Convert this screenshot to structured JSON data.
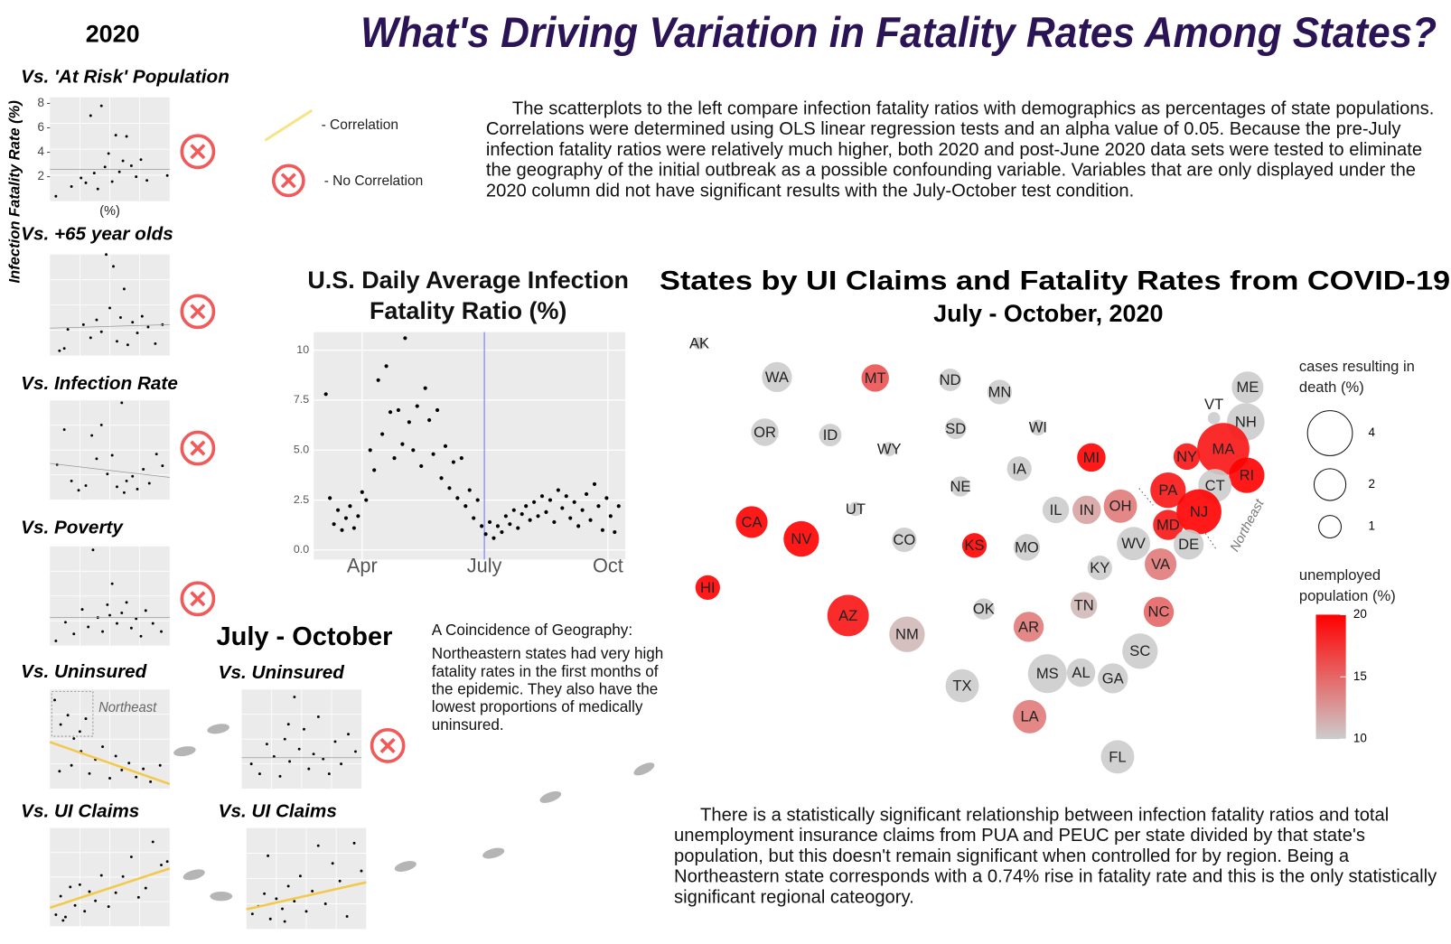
{
  "header": {
    "title": "What's Driving Variation in Fatality Rates Among States?",
    "col_2020": "2020",
    "col_july_oct": "July - October"
  },
  "y_axis_label": "Infection Fatality Rate (%)",
  "legend": {
    "correlation": "- Correlation",
    "no_correlation": "- No Correlation"
  },
  "intro_text": "The scatterplots to the left compare infection fatality ratios with demographics as percentages of state populations. Correlations were determined using OLS linear regression tests and an alpha value of 0.05. Because the pre-July infection fatality ratios were relatively much higher, both 2020 and post-June 2020 data sets were tested to eliminate the geography of the initial outbreak as a possible confounding variable. Variables that are only displayed under the 2020 column did not have significant results with the July-October test condition.",
  "note": {
    "title": "A Coincidence of Geography:",
    "body": "Northeastern states had very high fatality rates in the first months of the epidemic. They also have the lowest proportions of medically uninsured."
  },
  "conclusion": "There is a statistically significant relationship between infection fatality ratios and total unemployment insurance claims from PUA and PEUC per state divided by that state's population, but this doesn't remain significant when controlled for by region. Being a Northeastern state corresponds with a 0.74% rise in fatality rate and this is the only statistically significant regional cateogory.",
  "chart_data": [
    {
      "type": "scatter",
      "title": "Vs. 'At Risk' Population",
      "xlabel": "(%)",
      "xlim": [
        0,
        10
      ],
      "ylim": [
        0,
        8.5
      ],
      "yticks": [
        2,
        4,
        6,
        8
      ],
      "correlation": false,
      "fit_line": [
        2.6,
        2.6
      ],
      "x": [
        0.5,
        1.8,
        2.6,
        3.0,
        3.4,
        3.7,
        4.0,
        4.3,
        4.6,
        4.9,
        5.2,
        5.5,
        5.8,
        6.1,
        6.4,
        6.8,
        7.2,
        7.6,
        8.1,
        9.8
      ],
      "y": [
        0.4,
        1.2,
        1.9,
        1.5,
        7.0,
        2.3,
        1.0,
        7.8,
        2.8,
        3.9,
        1.6,
        5.4,
        2.4,
        3.3,
        5.3,
        2.9,
        2.0,
        3.4,
        1.7,
        2.1
      ]
    },
    {
      "type": "scatter",
      "title": "Vs. +65 year olds",
      "xlim": [
        0,
        10
      ],
      "ylim": [
        0,
        8.5
      ],
      "correlation": false,
      "fit_line": [
        2.3,
        2.6
      ],
      "x": [
        0.8,
        1.5,
        2.8,
        3.4,
        3.9,
        4.3,
        4.7,
        5.0,
        5.3,
        5.6,
        5.9,
        6.2,
        6.5,
        6.9,
        7.3,
        7.7,
        8.2,
        8.8,
        9.4,
        1.2
      ],
      "y": [
        0.4,
        2.2,
        2.6,
        1.5,
        3.0,
        2.0,
        8.5,
        4.0,
        7.5,
        1.2,
        3.2,
        5.6,
        0.9,
        2.8,
        1.9,
        3.3,
        2.4,
        1.0,
        2.6,
        0.6
      ]
    },
    {
      "type": "scatter",
      "title": "Vs. Infection Rate",
      "xlim": [
        0,
        10
      ],
      "ylim": [
        0,
        8.5
      ],
      "correlation": false,
      "fit_line": [
        3.1,
        1.9
      ],
      "x": [
        0.6,
        1.2,
        1.8,
        2.4,
        3.0,
        3.5,
        3.9,
        4.3,
        4.8,
        5.2,
        5.6,
        6.0,
        6.4,
        6.9,
        7.3,
        7.8,
        8.3,
        8.9,
        9.4,
        6.2
      ],
      "y": [
        3.0,
        6.0,
        1.6,
        0.8,
        1.2,
        5.5,
        3.5,
        6.4,
        2.2,
        3.8,
        1.1,
        8.3,
        1.6,
        2.0,
        0.9,
        2.6,
        1.4,
        3.9,
        2.9,
        0.6
      ]
    },
    {
      "type": "scatter",
      "title": "Vs. Poverty",
      "xlim": [
        0,
        10
      ],
      "ylim": [
        0,
        8.5
      ],
      "correlation": false,
      "fit_line": [
        2.4,
        2.4
      ],
      "x": [
        0.5,
        1.3,
        2.0,
        2.7,
        3.2,
        3.6,
        4.0,
        4.4,
        4.8,
        5.2,
        5.6,
        6.0,
        6.4,
        6.8,
        7.2,
        7.6,
        8.0,
        8.6,
        9.3,
        5.0
      ],
      "y": [
        0.4,
        2.0,
        1.0,
        3.1,
        1.6,
        8.2,
        2.4,
        1.2,
        3.5,
        5.3,
        1.9,
        2.8,
        3.7,
        1.5,
        2.3,
        0.8,
        3.0,
        1.9,
        1.2,
        2.6
      ]
    },
    {
      "type": "scatter",
      "title": "Vs. Uninsured",
      "annotation": "Northeast",
      "xlim": [
        0,
        10
      ],
      "ylim": [
        0,
        8.5
      ],
      "correlation": true,
      "fit_line": [
        4.0,
        0.4
      ],
      "x": [
        0.4,
        0.9,
        1.5,
        2.0,
        2.5,
        3.0,
        0.8,
        1.8,
        2.6,
        3.3,
        3.8,
        4.4,
        5.0,
        5.5,
        6.0,
        6.6,
        7.2,
        7.8,
        8.4,
        9.2
      ],
      "y": [
        7.6,
        5.5,
        6.3,
        4.3,
        4.9,
        6.0,
        1.5,
        2.0,
        3.2,
        1.3,
        2.5,
        3.6,
        0.9,
        2.8,
        1.6,
        2.2,
        1.0,
        1.7,
        0.6,
        2.0
      ]
    },
    {
      "type": "scatter",
      "title": "Vs. UI Claims",
      "xlim": [
        0,
        10
      ],
      "ylim": [
        0,
        8.5
      ],
      "correlation": true,
      "fit_line": [
        1.6,
        5.0
      ],
      "x": [
        0.5,
        0.9,
        1.3,
        1.7,
        2.1,
        2.5,
        2.9,
        3.3,
        3.8,
        4.3,
        4.9,
        5.5,
        6.1,
        6.8,
        7.4,
        8.0,
        8.6,
        9.3,
        9.8,
        1.1
      ],
      "y": [
        1.0,
        2.6,
        0.8,
        3.4,
        1.8,
        3.6,
        1.3,
        3.0,
        2.2,
        4.4,
        1.7,
        2.9,
        4.3,
        6.0,
        2.5,
        3.3,
        7.3,
        5.3,
        5.6,
        0.5
      ]
    },
    {
      "type": "scatter",
      "title": "Vs. Uninsured",
      "xlim": [
        0,
        10
      ],
      "ylim": [
        0,
        4
      ],
      "correlation": false,
      "fit_line": [
        1.25,
        1.25
      ],
      "x": [
        0.8,
        1.5,
        2.1,
        2.7,
        3.2,
        3.6,
        4.0,
        4.4,
        4.8,
        5.2,
        5.6,
        6.0,
        6.4,
        6.8,
        7.3,
        7.8,
        8.3,
        8.9,
        9.5,
        3.9
      ],
      "y": [
        1.0,
        0.6,
        1.8,
        1.3,
        0.5,
        2.0,
        1.1,
        3.7,
        1.6,
        2.4,
        0.8,
        1.4,
        2.9,
        1.2,
        0.6,
        1.9,
        1.0,
        2.2,
        1.5,
        2.6
      ]
    },
    {
      "type": "scatter",
      "title": "Vs. UI Claims",
      "xlim": [
        0,
        10
      ],
      "ylim": [
        0,
        4
      ],
      "correlation": true,
      "fit_line": [
        0.78,
        1.85
      ],
      "x": [
        0.5,
        1.0,
        1.5,
        2.0,
        2.5,
        3.0,
        3.5,
        4.0,
        4.5,
        5.0,
        5.5,
        6.0,
        6.6,
        7.2,
        7.8,
        8.4,
        9.0,
        9.6,
        1.8,
        3.2
      ],
      "y": [
        0.6,
        0.9,
        1.4,
        0.4,
        1.2,
        0.8,
        1.7,
        1.1,
        2.1,
        0.7,
        1.5,
        3.3,
        1.0,
        2.6,
        1.9,
        0.5,
        3.4,
        2.3,
        2.9,
        0.3
      ]
    },
    {
      "type": "scatter",
      "title": "U.S. Daily Average Infection Fatality Ratio (%)",
      "grid": true,
      "vline": 183,
      "xlim": [
        56,
        288
      ],
      "ylim": [
        -0.47,
        10.9
      ],
      "xticks": [
        {
          "value": 92,
          "label": "Apr"
        },
        {
          "value": 183,
          "label": "July"
        },
        {
          "value": 275,
          "label": "Oct"
        }
      ],
      "yticks": [
        {
          "value": 0,
          "label": "0.0"
        },
        2.5,
        {
          "value": 5,
          "label": "5.0"
        },
        7.5,
        10
      ],
      "x": [
        65,
        68,
        71,
        74,
        77,
        80,
        83,
        86,
        89,
        92,
        95,
        98,
        101,
        104,
        107,
        110,
        113,
        116,
        119,
        122,
        124,
        127,
        130,
        133,
        136,
        139,
        142,
        145,
        148,
        151,
        154,
        157,
        160,
        163,
        166,
        169,
        172,
        175,
        178,
        181,
        184,
        187,
        190,
        193,
        196,
        199,
        202,
        205,
        208,
        211,
        214,
        217,
        220,
        223,
        226,
        229,
        232,
        235,
        238,
        241,
        244,
        247,
        250,
        253,
        256,
        259,
        262,
        265,
        268,
        271,
        274,
        277,
        280,
        283
      ],
      "y": [
        7.8,
        2.6,
        1.3,
        2.0,
        1.0,
        1.6,
        2.2,
        1.1,
        1.7,
        2.9,
        2.5,
        5.0,
        4.0,
        8.5,
        5.8,
        9.2,
        6.9,
        4.6,
        7.0,
        5.3,
        10.6,
        6.4,
        5.0,
        7.2,
        4.2,
        8.1,
        6.5,
        4.8,
        7.0,
        3.6,
        5.2,
        3.1,
        4.4,
        2.6,
        4.6,
        2.2,
        3.0,
        1.6,
        2.5,
        1.2,
        0.8,
        1.4,
        0.6,
        1.2,
        0.9,
        1.7,
        1.3,
        2.0,
        1.1,
        1.8,
        2.2,
        1.5,
        2.4,
        1.7,
        2.7,
        1.9,
        2.5,
        1.4,
        3.0,
        2.1,
        2.7,
        1.6,
        2.4,
        1.2,
        2.0,
        2.8,
        1.5,
        3.3,
        2.2,
        1.0,
        2.6,
        1.7,
        0.9,
        2.2
      ]
    },
    {
      "type": "bubble",
      "title": "States by UI Claims and Fatality Rates from COVID-19",
      "subtitle": "July - October, 2020",
      "annotation": "Northeast",
      "color_low": "#cccccc",
      "color_high": "#ff0000",
      "categories": [
        "AK",
        "WA",
        "MT",
        "ND",
        "MN",
        "OR",
        "ID",
        "WY",
        "SD",
        "WI",
        "VT",
        "ME",
        "NH",
        "MA",
        "NY",
        "RI",
        "MI",
        "IA",
        "NE",
        "PA",
        "CT",
        "NJ",
        "OH",
        "IN",
        "IL",
        "MD",
        "DE",
        "UT",
        "CA",
        "NV",
        "CO",
        "KS",
        "MO",
        "WV",
        "VA",
        "KY",
        "HI",
        "OK",
        "TN",
        "NC",
        "AZ",
        "NM",
        "AR",
        "SC",
        "MS",
        "AL",
        "GA",
        "TX",
        "LA",
        "FL"
      ],
      "values": [
        0.3,
        1.8,
        1.5,
        1.0,
        1.2,
        1.5,
        1.0,
        0.4,
        0.9,
        0.5,
        0.3,
        2.0,
        2.8,
        5.4,
        1.4,
        2.5,
        1.6,
        1.2,
        0.8,
        2.5,
        2.2,
        4.0,
        2.2,
        1.6,
        1.4,
        1.8,
        1.8,
        0.4,
        2.0,
        2.5,
        1.2,
        1.2,
        1.4,
        2.2,
        2.0,
        1.2,
        1.2,
        0.9,
        1.4,
        1.8,
        3.4,
        2.5,
        1.8,
        2.5,
        3.0,
        1.6,
        1.8,
        2.2,
        2.2,
        2.2
      ],
      "color_values": [
        10,
        10,
        16,
        10,
        10,
        10,
        10,
        10,
        10,
        10,
        10,
        10,
        10,
        19,
        19,
        20,
        20,
        10,
        10,
        19,
        10,
        20,
        14,
        12,
        10,
        19,
        10,
        10,
        20,
        20,
        10,
        20,
        10,
        10,
        14,
        10,
        20,
        10,
        11,
        15,
        19,
        11,
        14,
        10,
        10,
        10,
        10,
        10,
        14,
        10
      ],
      "size_legend": {
        "title": "cases resulting in death (%)",
        "ticks": [
          4,
          2,
          1
        ]
      },
      "color_legend": {
        "title": "unemployed population (%)",
        "lim": [
          10,
          20
        ],
        "ticks": [
          10,
          15,
          20
        ]
      }
    }
  ]
}
